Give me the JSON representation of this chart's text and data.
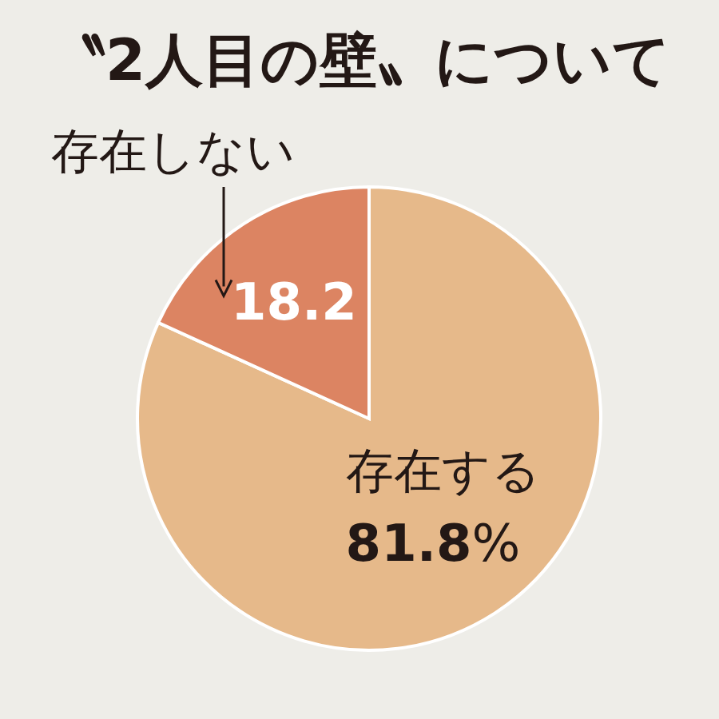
{
  "chart_data": {
    "type": "pie",
    "title": "〝2人目の壁〟について",
    "categories": [
      "存在する",
      "存在しない"
    ],
    "values": [
      81.8,
      18.2
    ],
    "colors": [
      "#e6b98a",
      "#dc8462"
    ],
    "value_labels": [
      "81.8%",
      "18.2"
    ]
  }
}
